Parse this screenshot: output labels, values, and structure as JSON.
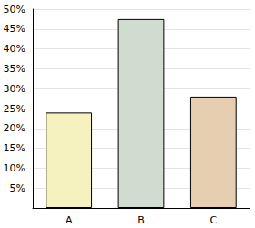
{
  "chart_data": {
    "type": "bar",
    "categories": [
      "A",
      "B",
      "C"
    ],
    "values": [
      24,
      47.5,
      28
    ],
    "colors": [
      "#f5f2c0",
      "#d0dcd0",
      "#e5cfb0"
    ],
    "ylim": [
      0,
      50
    ],
    "yticks": [
      {
        "value": 5,
        "label": "5%"
      },
      {
        "value": 10,
        "label": "10%"
      },
      {
        "value": 15,
        "label": "15%"
      },
      {
        "value": 20,
        "label": "20%"
      },
      {
        "value": 25,
        "label": "25%"
      },
      {
        "value": 30,
        "label": "30%"
      },
      {
        "value": 35,
        "label": "35%"
      },
      {
        "value": 40,
        "label": "40%"
      },
      {
        "value": 45,
        "label": "45%"
      },
      {
        "value": 50,
        "label": "50%"
      }
    ],
    "grid": true
  }
}
